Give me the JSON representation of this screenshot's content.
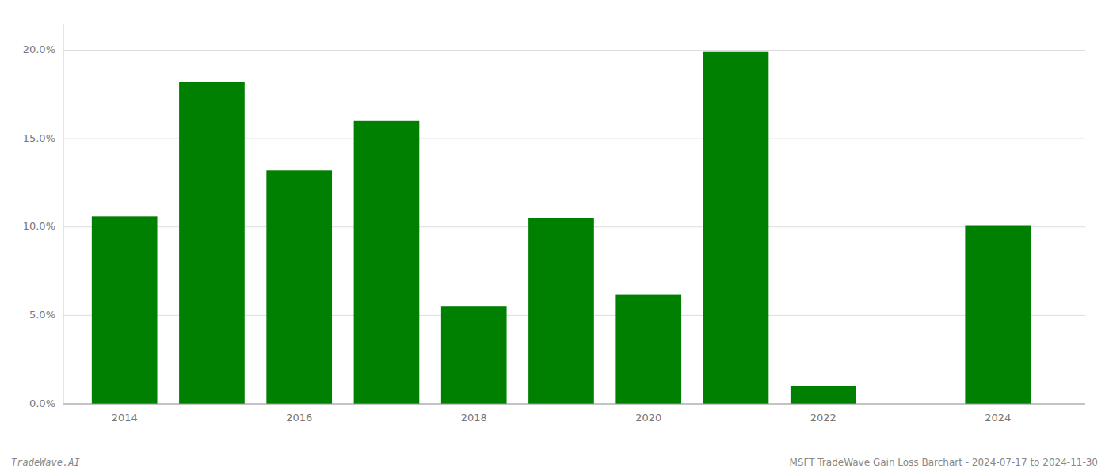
{
  "chart_data": {
    "type": "bar",
    "x": [
      2014,
      2015,
      2016,
      2017,
      2018,
      2019,
      2020,
      2021,
      2022,
      2023,
      2024
    ],
    "values": [
      0.106,
      0.182,
      0.132,
      0.16,
      0.055,
      0.105,
      0.062,
      0.199,
      0.01,
      0.0,
      0.101
    ],
    "color": "#008000",
    "xlim": [
      2013.3,
      2025.0
    ],
    "xticks": [
      2014,
      2016,
      2018,
      2020,
      2022,
      2024
    ],
    "ylim": [
      0,
      0.215
    ],
    "yticks": [
      {
        "value": 0.0,
        "label": "0.0%"
      },
      {
        "value": 0.05,
        "label": "5.0%"
      },
      {
        "value": 0.1,
        "label": "10.0%"
      },
      {
        "value": 0.15,
        "label": "15.0%"
      },
      {
        "value": 0.2,
        "label": "20.0%"
      }
    ],
    "grid": true,
    "annotations": [
      "TradeWave.AI",
      "MSFT TradeWave Gain Loss Barchart - 2024-07-17 to 2024-11-30"
    ]
  }
}
